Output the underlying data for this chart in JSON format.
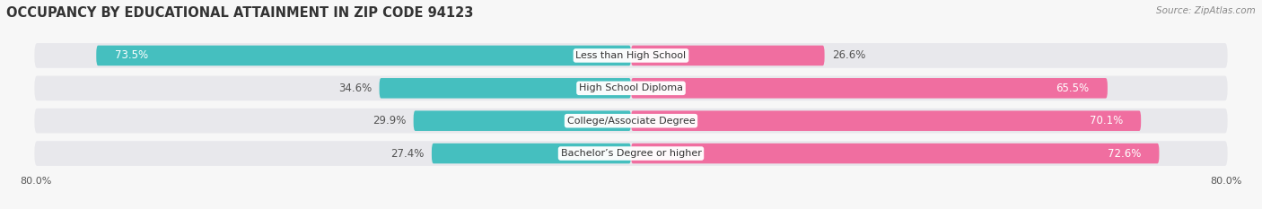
{
  "title": "OCCUPANCY BY EDUCATIONAL ATTAINMENT IN ZIP CODE 94123",
  "source": "Source: ZipAtlas.com",
  "categories": [
    "Less than High School",
    "High School Diploma",
    "College/Associate Degree",
    "Bachelor’s Degree or higher"
  ],
  "owner_values": [
    73.5,
    34.6,
    29.9,
    27.4
  ],
  "renter_values": [
    26.6,
    65.5,
    70.1,
    72.6
  ],
  "owner_color": "#45BFBF",
  "renter_color": "#F06EA0",
  "owner_color_light": "#A8DFDF",
  "renter_color_light": "#F9B8D0",
  "xlim_left": -80.0,
  "xlim_right": 80.0,
  "bar_height": 0.62,
  "row_bg_color": "#efefef",
  "fig_bg_color": "#f7f7f7",
  "title_fontsize": 10.5,
  "value_fontsize": 8.5,
  "cat_fontsize": 8.0,
  "legend_fontsize": 8.5,
  "source_fontsize": 7.5,
  "axis_label_fontsize": 8.0
}
